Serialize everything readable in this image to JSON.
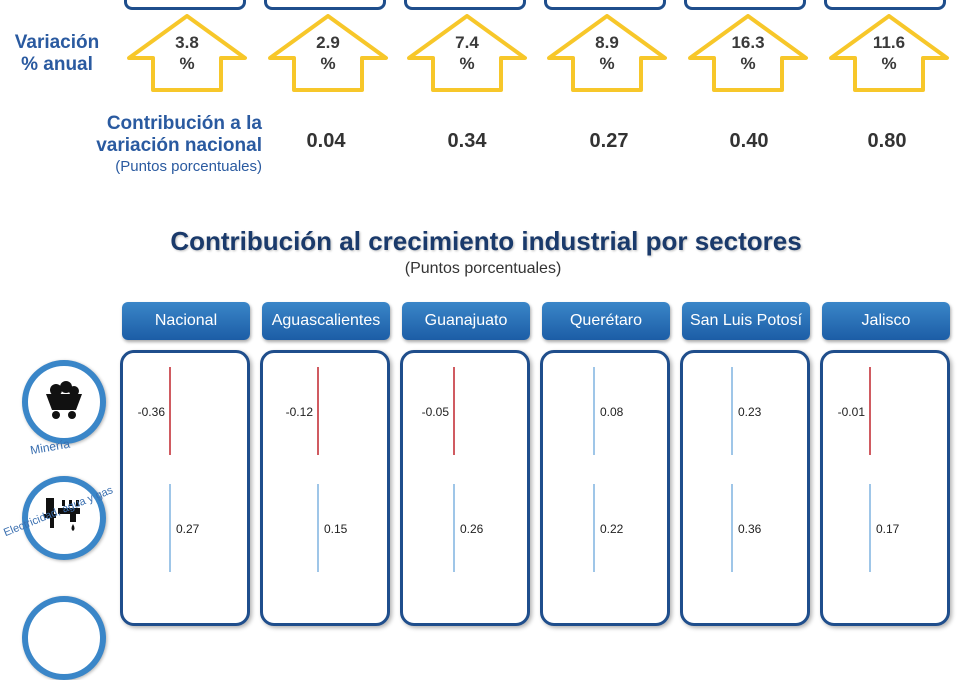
{
  "top_section": {
    "variacion_label": "Variación % anual",
    "contrib_label": "Contribución a la variación nacional",
    "contrib_sublabel": "(Puntos porcentuales)",
    "arrows": [
      {
        "value": "3.8",
        "unit": "%"
      },
      {
        "value": "2.9",
        "unit": "%"
      },
      {
        "value": "7.4",
        "unit": "%"
      },
      {
        "value": "8.9",
        "unit": "%"
      },
      {
        "value": "16.3",
        "unit": "%"
      },
      {
        "value": "11.6",
        "unit": "%"
      }
    ],
    "contributions": [
      "0.04",
      "0.34",
      "0.27",
      "0.40",
      "0.80"
    ],
    "arrow_color": "#f7c72a"
  },
  "chart_data": {
    "type": "bar",
    "title": "Contribución al crecimiento industrial por sectores",
    "subtitle": "(Puntos porcentuales)",
    "categories": [
      "Nacional",
      "Aguascalientes",
      "Guanajuato",
      "Querétaro",
      "San Luis Potosí",
      "Jalisco"
    ],
    "series": [
      {
        "name": "Minería",
        "values": [
          -0.36,
          -0.12,
          -0.05,
          0.08,
          0.23,
          -0.01
        ]
      },
      {
        "name": "Electricidad, agua y gas",
        "values": [
          0.27,
          0.15,
          0.26,
          0.22,
          0.36,
          0.17
        ]
      }
    ],
    "colors": {
      "positive": "#7fb2e0",
      "negative": "#c0242c"
    }
  }
}
